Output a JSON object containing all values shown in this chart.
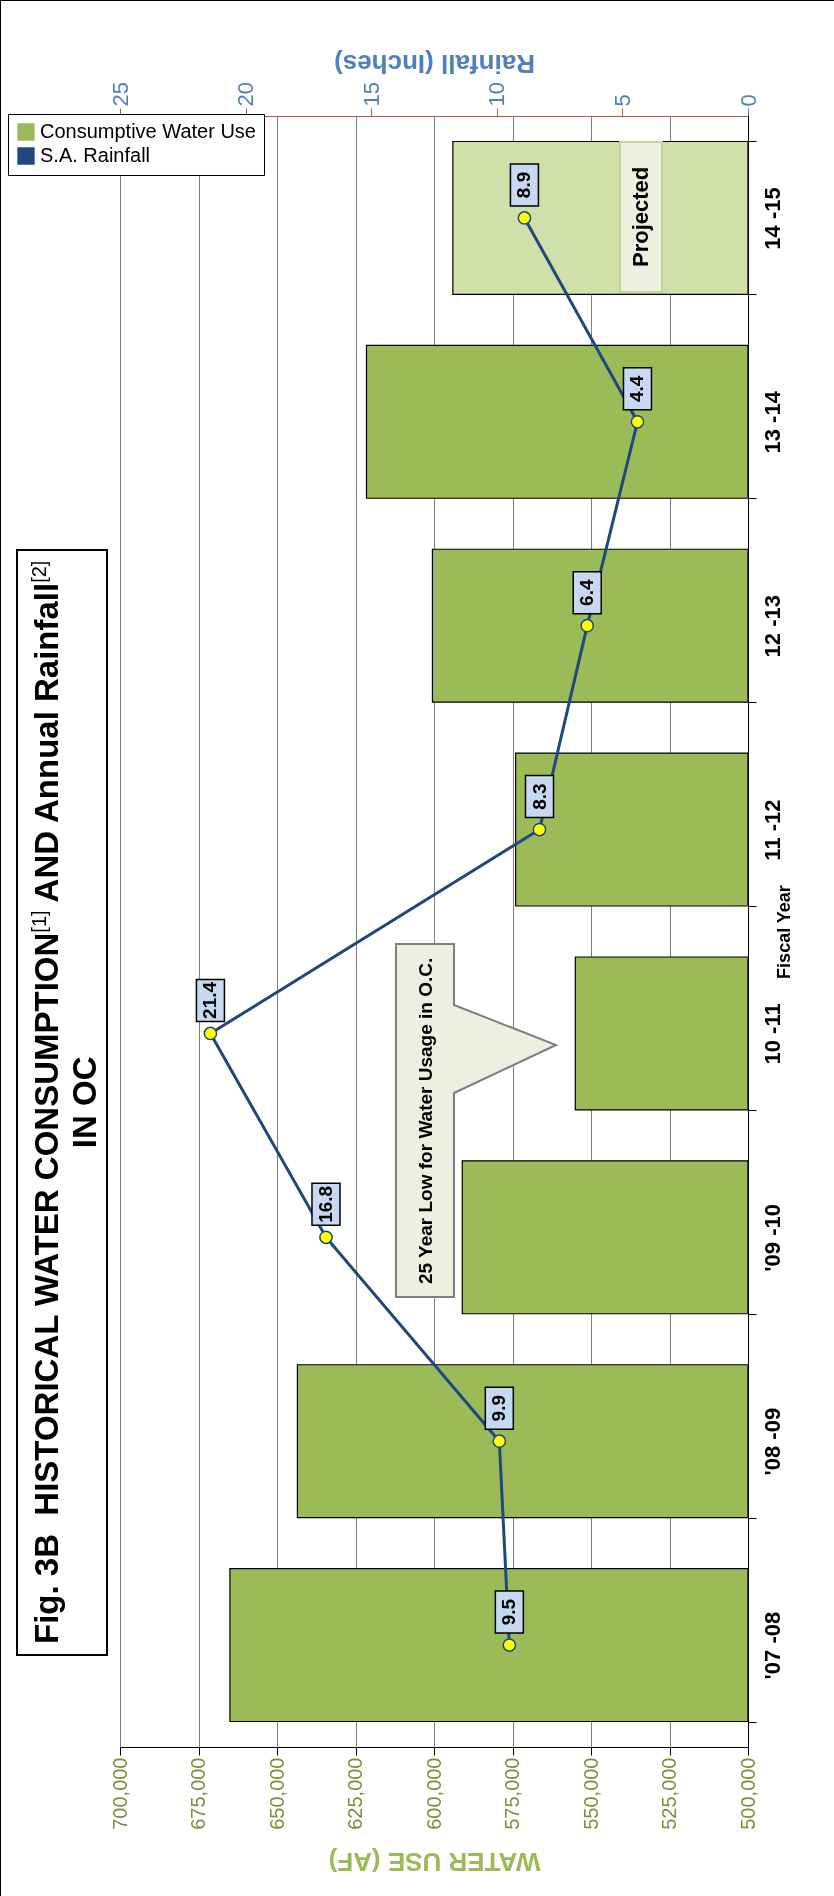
{
  "chart_data": {
    "type": "bar",
    "orientation": "horizontal",
    "title": "Fig. 3B  HISTORICAL WATER CONSUMPTION$^{[1]}$ AND Annual Rainfall$^{[2]}$\nIN OC",
    "ylabel": "Fiscal Year",
    "xlabel": "WATER USE (AF)",
    "x2label": "Rainfall (Inches)",
    "categories": [
      "14 -15",
      "13 -14",
      "12 -13",
      "11 -12",
      "10 -11",
      "'09 -10",
      "'08 -09",
      "'07 -08"
    ],
    "series": [
      {
        "name": "Consumptive Water Use",
        "color": "#9bbb59",
        "colors": [
          "#cfe0a8",
          "#9bbb59",
          "#9bbb59",
          "#9bbb59",
          "#9bbb59",
          "#9bbb59",
          "#9bbb59",
          "#9bbb59"
        ],
        "values": [
          594000,
          621500,
          600500,
          574000,
          555000,
          591000,
          643500,
          665000
        ]
      },
      {
        "name": "S.A. Rainfall",
        "type": "line",
        "axis": "x2",
        "color": "#1f497d",
        "values": [
          8.9,
          4.4,
          6.4,
          8.3,
          21.4,
          16.8,
          9.9,
          9.5
        ],
        "value_labels": [
          "8.9",
          "4.4",
          "6.4",
          "8.3",
          "21.4",
          "16.8",
          "9.9",
          "9.5"
        ]
      }
    ],
    "xlim": [
      700000,
      500000
    ],
    "xticks": [
      {
        "value": 700000,
        "label": "700,000"
      },
      {
        "value": 675000,
        "label": "675,000"
      },
      {
        "value": 650000,
        "label": "650,000"
      },
      {
        "value": 625000,
        "label": "625,000"
      },
      {
        "value": 600000,
        "label": "600,000"
      },
      {
        "value": 575000,
        "label": "575,000"
      },
      {
        "value": 550000,
        "label": "550,000"
      },
      {
        "value": 525000,
        "label": "525,000"
      },
      {
        "value": 500000,
        "label": "500,000"
      }
    ],
    "x2lim": [
      25,
      0
    ],
    "x2ticks": [
      25,
      20,
      15,
      10,
      5,
      0
    ],
    "grid": "x",
    "legend": "top left",
    "marker": "circle",
    "line_style": "solid",
    "annotations": [
      "Projected",
      "25 Year Low for Water Usage in O.C."
    ]
  }
}
